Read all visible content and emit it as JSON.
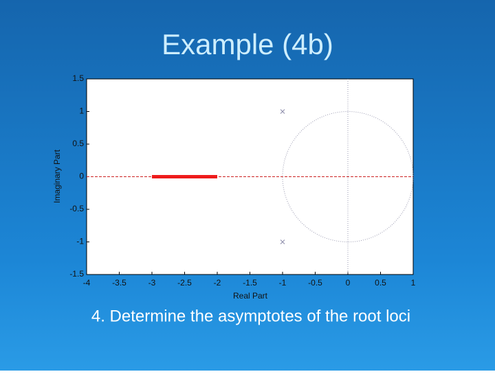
{
  "title": "Example (4b)",
  "caption": "4. Determine the asymptotes of the root loci",
  "chart_data": {
    "type": "scatter",
    "xlabel": "Real Part",
    "ylabel": "Imaginary Part",
    "xlim": [
      -4,
      1
    ],
    "ylim": [
      -1.5,
      1.5
    ],
    "xticks": [
      -4,
      -3.5,
      -3,
      -2.5,
      -2,
      -1.5,
      -1,
      -0.5,
      0,
      0.5,
      1
    ],
    "yticks": [
      -1.5,
      -1,
      -0.5,
      0,
      0.5,
      1,
      1.5
    ],
    "poles": {
      "x": [
        -1,
        -1
      ],
      "y": [
        1,
        -1
      ],
      "color": "#8a8aa8"
    },
    "locus": {
      "x": [
        -3,
        -2
      ],
      "y": [
        0,
        0
      ],
      "color": "#ee1c1c"
    },
    "asymptote": {
      "y": 0,
      "color": "#cc2222"
    },
    "circle": {
      "center": [
        0,
        0
      ],
      "radius": 1,
      "color": "#9a9ab0"
    }
  }
}
